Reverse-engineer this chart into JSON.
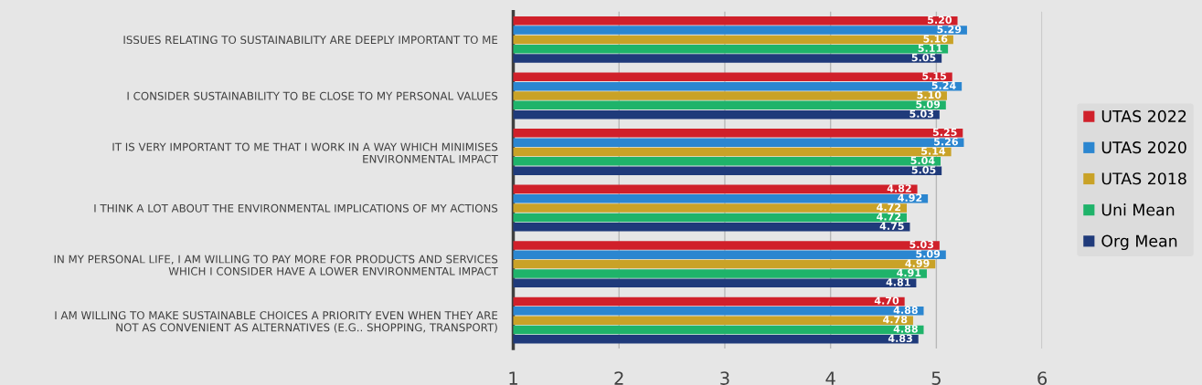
{
  "chart_data": {
    "type": "bar",
    "orientation": "horizontal",
    "categories": [
      "ISSUES RELATING TO SUSTAINABILITY ARE DEEPLY IMPORTANT TO ME",
      "I CONSIDER SUSTAINABILITY TO BE CLOSE TO MY PERSONAL VALUES",
      "IT IS VERY IMPORTANT TO ME THAT I WORK IN A WAY WHICH MINIMISES\nENVIRONMENTAL IMPACT",
      "I THINK A LOT ABOUT THE ENVIRONMENTAL IMPLICATIONS OF MY ACTIONS",
      "IN MY PERSONAL LIFE, I AM WILLING TO PAY MORE FOR PRODUCTS AND SERVICES\nWHICH I CONSIDER HAVE A LOWER ENVIRONMENTAL IMPACT",
      "I AM WILLING TO MAKE SUSTAINABLE CHOICES A PRIORITY EVEN WHEN THEY ARE\nNOT AS CONVENIENT AS ALTERNATIVES (E.G.. SHOPPING, TRANSPORT)"
    ],
    "series": [
      {
        "name": "UTAS 2022",
        "color": "#d0202a",
        "values": [
          5.2,
          5.15,
          5.25,
          4.82,
          5.03,
          4.7
        ],
        "value_labels": [
          "5.20",
          "5.15",
          "5.25",
          "4.82",
          "5.03",
          "4.70"
        ]
      },
      {
        "name": "UTAS 2020",
        "color": "#2b86d0",
        "values": [
          5.29,
          5.24,
          5.26,
          4.92,
          5.09,
          4.88
        ],
        "value_labels": [
          "5.29",
          "5.24",
          "5.26",
          "4.92",
          "5.09",
          "4.88"
        ]
      },
      {
        "name": "UTAS 2018",
        "color": "#c9a227",
        "values": [
          5.16,
          5.1,
          5.14,
          4.72,
          4.99,
          4.78
        ],
        "value_labels": [
          "5.16",
          "5.10",
          "5.14",
          "4.72",
          "4.99",
          "4.78"
        ]
      },
      {
        "name": "Uni Mean",
        "color": "#1fb36a",
        "values": [
          5.11,
          5.09,
          5.04,
          4.72,
          4.91,
          4.88
        ],
        "value_labels": [
          "5.11",
          "5.09",
          "5.04",
          "4.72",
          "4.91",
          "4.88"
        ]
      },
      {
        "name": "Org Mean",
        "color": "#1f3a7a",
        "values": [
          5.05,
          5.03,
          5.05,
          4.75,
          4.81,
          4.83
        ],
        "value_labels": [
          "5.05",
          "5.03",
          "5.05",
          "4.75",
          "4.81",
          "4.83"
        ]
      }
    ],
    "xlim": [
      1,
      6
    ],
    "xticks": [
      1,
      2,
      3,
      4,
      5,
      6
    ],
    "grid": "x",
    "legend": "right"
  }
}
